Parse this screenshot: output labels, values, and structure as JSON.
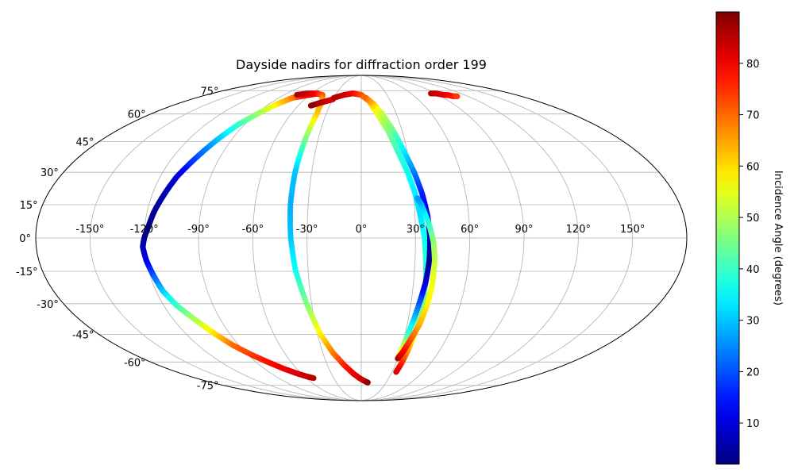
{
  "chart_data": {
    "type": "scatter",
    "projection": "mollweide",
    "title": "Dayside nadirs for diffraction order 199",
    "xlabel": "",
    "ylabel": "",
    "grid": true,
    "lon_ticks": [
      -150,
      -120,
      -90,
      -60,
      -30,
      0,
      30,
      60,
      90,
      120,
      150
    ],
    "lon_tick_labels": [
      "-150°",
      "-120°",
      "-90°",
      "-60°",
      "-30°",
      "0°",
      "30°",
      "60°",
      "90°",
      "120°",
      "150°"
    ],
    "lat_ticks": [
      -75,
      -60,
      -45,
      -30,
      -15,
      0,
      15,
      30,
      45,
      60,
      75
    ],
    "lat_tick_labels": [
      "-75°",
      "-60°",
      "-45°",
      "-30°",
      "-15°",
      "0°",
      "15°",
      "30°",
      "45°",
      "60°",
      "75°"
    ],
    "colorbar": {
      "label": "Incidence Angle (degrees)",
      "colormap": "jet",
      "range": [
        2,
        90
      ],
      "ticks": [
        10,
        20,
        30,
        40,
        50,
        60,
        70,
        80
      ],
      "tick_labels": [
        "10",
        "20",
        "30",
        "40",
        "50",
        "60",
        "70",
        "80"
      ]
    },
    "series": [
      {
        "lon": [
          -52,
          -60,
          -68,
          -75,
          -82,
          -88,
          -95,
          -100,
          -105,
          -110,
          -113,
          -116,
          -118,
          -120,
          -121,
          -120,
          -118,
          -116,
          -112,
          -106,
          -100,
          -94,
          -87,
          -80,
          -72,
          -64,
          -57,
          -52
        ],
        "lat": [
          73,
          72,
          71,
          70,
          66,
          61,
          54,
          46,
          37,
          28,
          20,
          12,
          5,
          0,
          -4,
          -10,
          -17,
          -24,
          -31,
          -38,
          -45,
          -51,
          -56,
          -60,
          -64,
          -67,
          -69,
          -70
        ],
        "value": [
          84,
          80,
          78,
          70,
          60,
          50,
          40,
          30,
          20,
          10,
          6,
          4,
          3,
          4,
          6,
          10,
          20,
          30,
          40,
          50,
          60,
          70,
          74,
          78,
          80,
          82,
          84,
          85
        ]
      },
      {
        "lon": [
          -75,
          -65,
          -55,
          -45,
          -40,
          -38,
          -39,
          -40,
          -40,
          -39,
          -37,
          -33,
          -28,
          -22,
          -15,
          -8,
          -2,
          4,
          8
        ],
        "lat": [
          72,
          73,
          73,
          72,
          68,
          60,
          45,
          30,
          15,
          0,
          -15,
          -30,
          -45,
          -55,
          -62,
          -67,
          -70,
          -72,
          -73
        ],
        "value": [
          86,
          84,
          80,
          72,
          66,
          62,
          44,
          30,
          28,
          30,
          36,
          46,
          58,
          68,
          76,
          80,
          82,
          84,
          88
        ]
      },
      {
        "lon": [
          -48,
          -44,
          -40,
          -35,
          -30
        ],
        "lat": [
          65,
          66,
          67,
          68,
          69
        ],
        "value": [
          89,
          88,
          86,
          84,
          82
        ]
      },
      {
        "lon": [
          -30,
          -20,
          -10,
          0,
          8,
          14,
          20,
          24,
          28,
          31,
          33,
          35,
          36,
          37,
          37,
          37,
          36,
          35,
          34
        ],
        "lat": [
          70,
          72,
          73,
          72,
          68,
          60,
          50,
          40,
          30,
          20,
          10,
          0,
          -10,
          -20,
          -30,
          -40,
          -50,
          -60,
          -66
        ],
        "value": [
          86,
          84,
          80,
          74,
          64,
          56,
          46,
          40,
          36,
          34,
          32,
          36,
          38,
          42,
          44,
          48,
          60,
          74,
          82
        ]
      },
      {
        "lon": [
          5,
          12,
          18,
          24,
          28,
          32,
          35,
          37,
          38,
          38,
          37,
          35,
          32,
          30
        ],
        "lat": [
          70,
          66,
          60,
          50,
          40,
          30,
          20,
          10,
          0,
          -10,
          -20,
          -30,
          -45,
          -58
        ],
        "value": [
          72,
          64,
          52,
          44,
          34,
          24,
          16,
          10,
          6,
          4,
          8,
          20,
          40,
          62
        ]
      },
      {
        "lon": [
          30,
          32,
          34,
          36,
          38,
          40,
          41,
          41,
          40,
          38,
          36,
          34,
          32
        ],
        "lat": [
          -58,
          -55,
          -50,
          -45,
          -40,
          -30,
          -20,
          -10,
          -2,
          5,
          10,
          15,
          18
        ],
        "value": [
          86,
          82,
          76,
          70,
          64,
          58,
          56,
          52,
          48,
          42,
          36,
          30,
          26
        ]
      },
      {
        "lon": [
          84,
          90,
          96,
          100,
          104,
          108
        ],
        "lat": [
          73,
          73,
          72,
          72,
          71,
          71
        ],
        "value": [
          86,
          84,
          82,
          80,
          78,
          74
        ]
      }
    ]
  }
}
